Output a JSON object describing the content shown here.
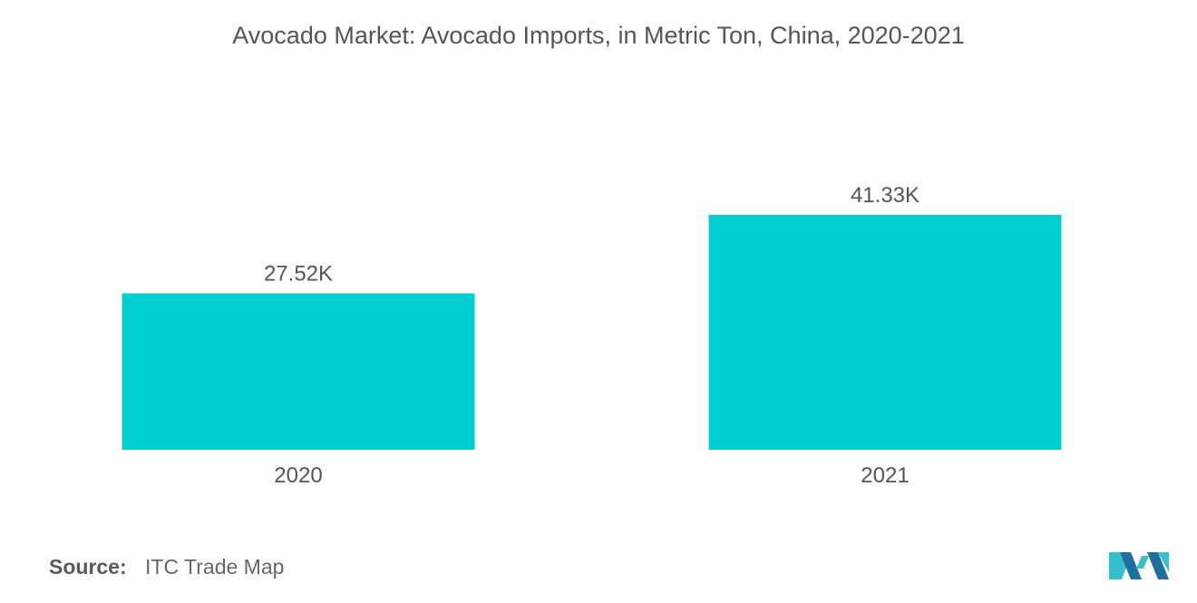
{
  "title": "Avocado Market: Avocado Imports, in Metric Ton, China, 2020-2021",
  "source": {
    "label": "Source:",
    "text": "ITC Trade Map"
  },
  "logo": {
    "icon": "mordor-intelligence-logo-icon"
  },
  "colors": {
    "bar": "#00ced1",
    "text": "#555555",
    "logo_dark": "#1f6f9f",
    "logo_light": "#35c0d0"
  },
  "chart_data": {
    "type": "bar",
    "title": "Avocado Market: Avocado Imports, in Metric Ton, China, 2020-2021",
    "categories": [
      "2020",
      "2021"
    ],
    "values": [
      27520,
      41330
    ],
    "data_labels": [
      "27.52K",
      "41.33K"
    ],
    "ylim": [
      0,
      41330
    ],
    "xlabel": "",
    "ylabel": "",
    "grid": false,
    "legend": "none"
  }
}
